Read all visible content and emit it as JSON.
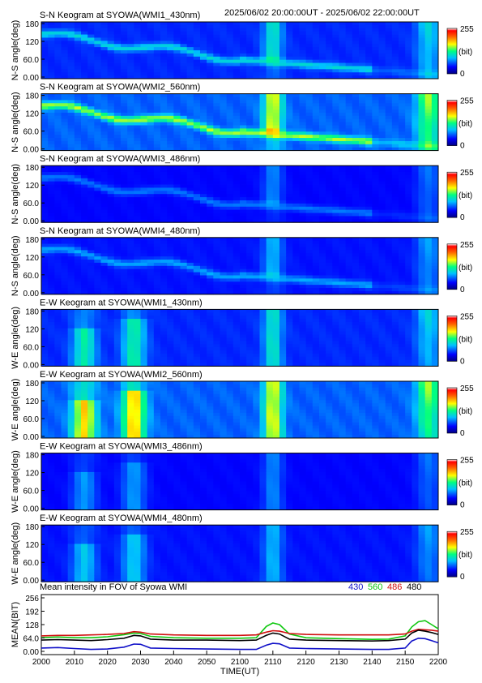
{
  "header": {
    "time_range": "2025/06/02 20:00:00UT - 2025/06/02 22:00:00UT"
  },
  "colorbar": {
    "max_label": "255",
    "min_label": "0",
    "unit_label": "(bit)"
  },
  "colors": {
    "blue": "#1010c8",
    "green": "#10c810",
    "red": "#d01010",
    "black": "#000000"
  },
  "chart_data": [
    {
      "type": "heatmap",
      "panels": [
        {
          "title": "S-N Keogram at SYOWA(WMI1_430nm)",
          "ylabel": "N-S angle(deg)",
          "station": "WMI1",
          "direction": "NS",
          "intensity": 0.6
        },
        {
          "title": "S-N Keogram at SYOWA(WMI2_560nm)",
          "ylabel": "N-S angle(deg)",
          "station": "WMI2",
          "direction": "NS",
          "intensity": 1.0
        },
        {
          "title": "S-N Keogram at SYOWA(WMI3_486nm)",
          "ylabel": "N-S angle(deg)",
          "station": "WMI3",
          "direction": "NS",
          "intensity": 0.35
        },
        {
          "title": "S-N Keogram at SYOWA(WMI4_480nm)",
          "ylabel": "N-S angle(deg)",
          "station": "WMI4",
          "direction": "NS",
          "intensity": 0.45
        },
        {
          "title": "E-W Keogram at SYOWA(WMI1_430nm)",
          "ylabel": "W-E angle(deg)",
          "station": "WMI1",
          "direction": "EW",
          "intensity": 0.6
        },
        {
          "title": "E-W Keogram at SYOWA(WMI2_560nm)",
          "ylabel": "W-E angle(deg)",
          "station": "WMI2",
          "direction": "EW",
          "intensity": 1.0
        },
        {
          "title": "E-W Keogram at SYOWA(WMI3_486nm)",
          "ylabel": "W-E angle(deg)",
          "station": "WMI3",
          "direction": "EW",
          "intensity": 0.35
        },
        {
          "title": "E-W Keogram at SYOWA(WMI4_480nm)",
          "ylabel": "W-E angle(deg)",
          "station": "WMI4",
          "direction": "EW",
          "intensity": 0.45
        }
      ],
      "yticks": [
        "180",
        "120",
        "60.0",
        "0.00"
      ],
      "ylim": [
        0,
        180
      ]
    },
    {
      "type": "line",
      "title": "Mean intensity in FOV of Syowa WMI",
      "xlabel": "TIME(UT)",
      "ylabel": "MEAN(BIT)",
      "xlim": [
        0,
        120
      ],
      "ylim": [
        0,
        256
      ],
      "xticks": [
        "2000",
        "2010",
        "2020",
        "2030",
        "2040",
        "2050",
        "2100",
        "2110",
        "2120",
        "2130",
        "2140",
        "2150",
        "2200"
      ],
      "yticks": [
        "256",
        "192",
        "128",
        "64.0",
        "0.00"
      ],
      "x": [
        0,
        5,
        10,
        15,
        20,
        25,
        28,
        30,
        33,
        40,
        50,
        60,
        65,
        68,
        70,
        72,
        75,
        80,
        90,
        100,
        105,
        110,
        112,
        114,
        116,
        118,
        120
      ],
      "series": [
        {
          "name": "430",
          "color": "#1010c8",
          "values": [
            28,
            30,
            26,
            22,
            24,
            32,
            45,
            44,
            28,
            26,
            24,
            22,
            22,
            40,
            48,
            46,
            28,
            26,
            24,
            22,
            22,
            28,
            58,
            70,
            68,
            60,
            50
          ]
        },
        {
          "name": "560",
          "color": "#10c810",
          "values": [
            72,
            75,
            72,
            72,
            76,
            85,
            92,
            90,
            78,
            72,
            70,
            70,
            72,
            120,
            135,
            128,
            88,
            72,
            68,
            65,
            66,
            80,
            118,
            140,
            145,
            128,
            110
          ]
        },
        {
          "name": "486",
          "color": "#d01010",
          "values": [
            80,
            82,
            82,
            84,
            86,
            90,
            98,
            96,
            88,
            84,
            82,
            82,
            84,
            96,
            102,
            100,
            90,
            86,
            84,
            84,
            84,
            88,
            100,
            108,
            106,
            104,
            100
          ]
        },
        {
          "name": "480",
          "color": "#000000",
          "values": [
            62,
            64,
            62,
            60,
            64,
            70,
            82,
            80,
            66,
            62,
            62,
            60,
            62,
            82,
            92,
            88,
            66,
            62,
            60,
            58,
            60,
            66,
            92,
            104,
            100,
            94,
            86
          ]
        }
      ]
    }
  ]
}
